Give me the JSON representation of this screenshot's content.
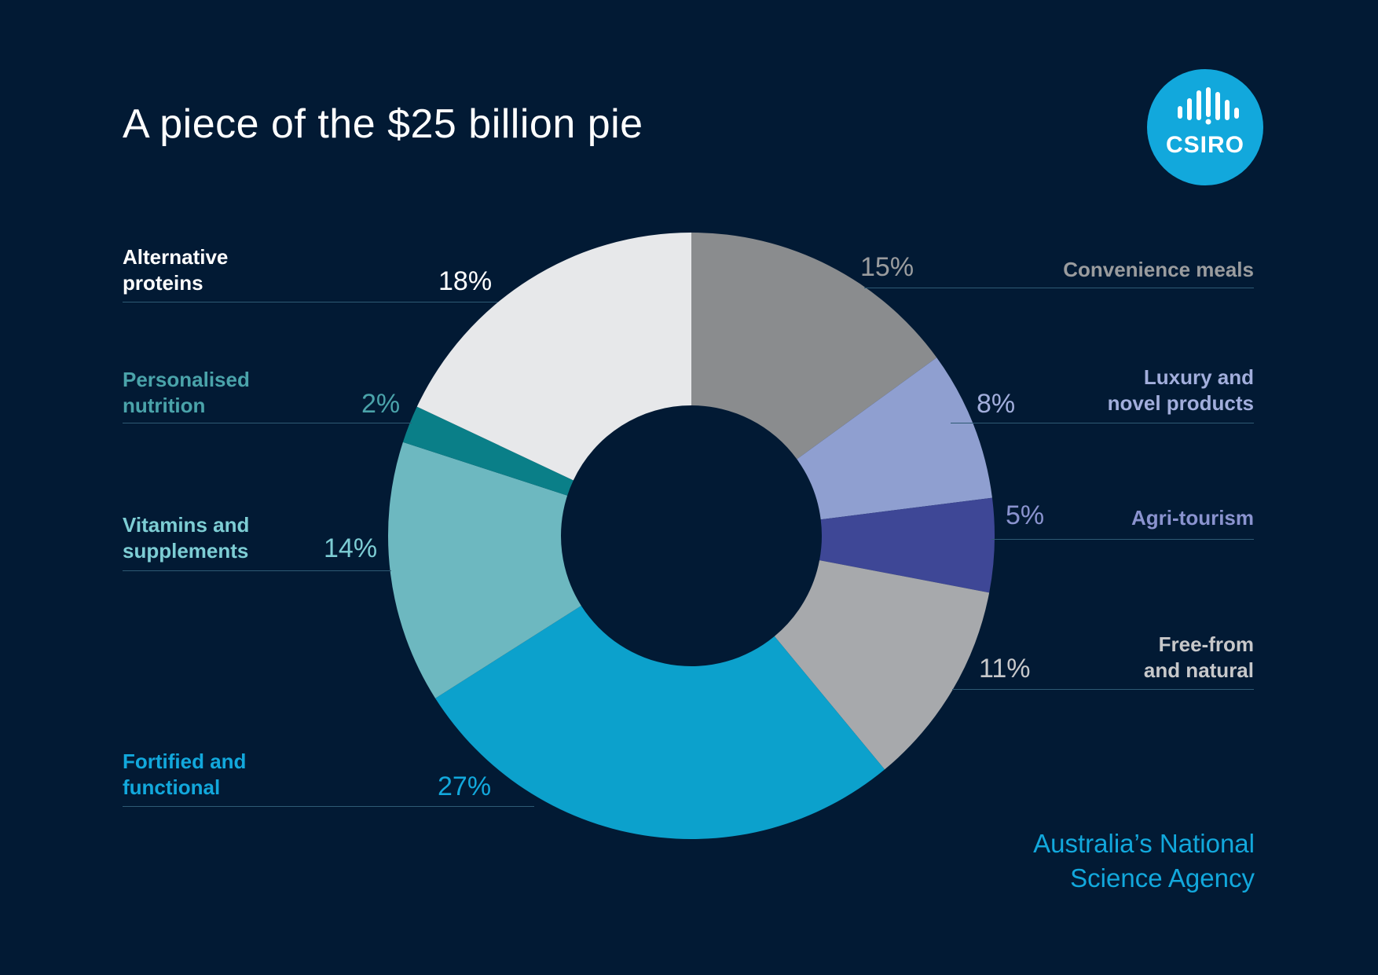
{
  "title": "A piece of the $25 billion pie",
  "logo": {
    "text": "CSIRO",
    "color": "#12a8dc"
  },
  "tagline": {
    "line1": "Australia’s National",
    "line2": "Science Agency"
  },
  "background": "#021a34",
  "chart_data": {
    "type": "pie",
    "title": "A piece of the $25 billion pie",
    "hole": true,
    "slices": [
      {
        "label_line1": "Convenience meals",
        "label_line2": "",
        "value": 15,
        "display": "15%",
        "color": "#8a8c8e",
        "label_color": "#9a9c9e"
      },
      {
        "label_line1": "Luxury and",
        "label_line2": "novel products",
        "value": 8,
        "display": "8%",
        "color": "#8f9fd0",
        "label_color": "#a2aedc"
      },
      {
        "label_line1": "Agri-tourism",
        "label_line2": "",
        "value": 5,
        "display": "5%",
        "color": "#3e4796",
        "label_color": "#8a93cf"
      },
      {
        "label_line1": "Free-from",
        "label_line2": "and natural",
        "value": 11,
        "display": "11%",
        "color": "#a7a9ac",
        "label_color": "#c7c8ca"
      },
      {
        "label_line1": "Fortified and",
        "label_line2": "functional",
        "value": 27,
        "display": "27%",
        "color": "#0ca1cc",
        "label_color": "#12a8dc"
      },
      {
        "label_line1": "Vitamins and",
        "label_line2": "supplements",
        "value": 14,
        "display": "14%",
        "color": "#6db8c0",
        "label_color": "#7dcdd4"
      },
      {
        "label_line1": "Personalised",
        "label_line2": "nutrition",
        "value": 2,
        "display": "2%",
        "color": "#0a7f88",
        "label_color": "#4aa3aa"
      },
      {
        "label_line1": "Alternative",
        "label_line2": "proteins",
        "value": 18,
        "display": "18%",
        "color": "#e7e8ea",
        "label_color": "#ffffff"
      }
    ]
  }
}
